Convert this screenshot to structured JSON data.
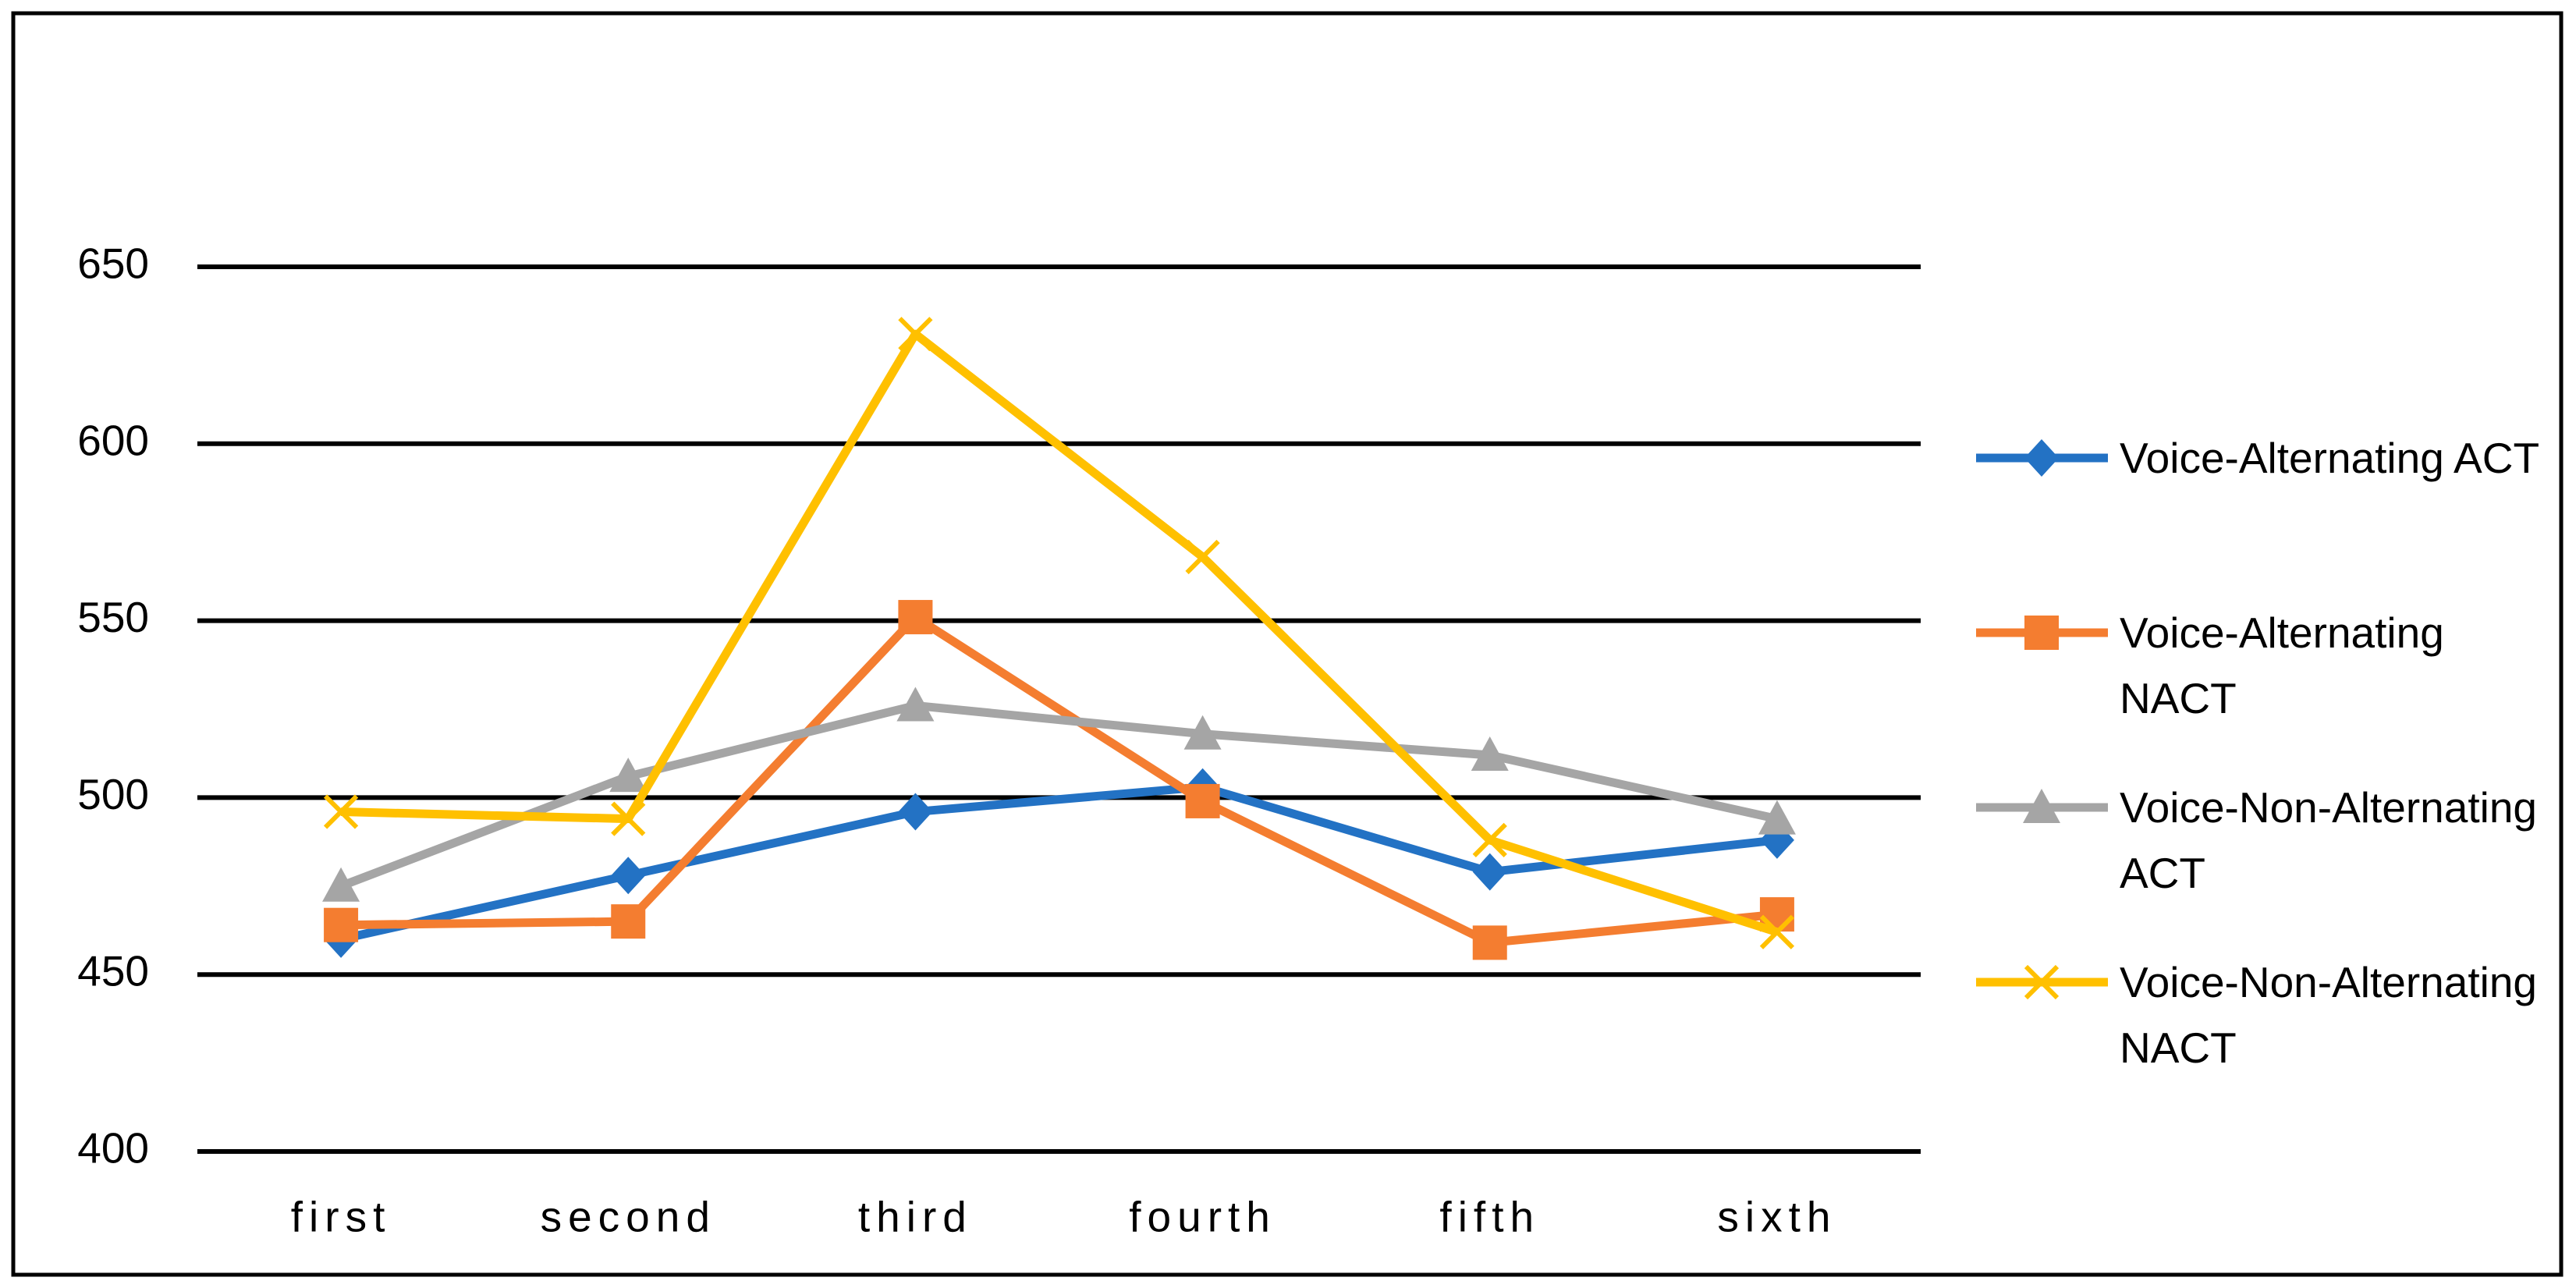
{
  "chart_data": {
    "type": "line",
    "categories": [
      "first",
      "second",
      "third",
      "fourth",
      "fifth",
      "sixth"
    ],
    "series": [
      {
        "name": "Voice-Alternating ACT",
        "color": "#2372c4",
        "marker": "diamond",
        "values": [
          460,
          478,
          496,
          503,
          479,
          488
        ]
      },
      {
        "name": "Voice-Alternating NACT",
        "color": "#f47d30",
        "marker": "square",
        "values": [
          464,
          465,
          551,
          499,
          459,
          467
        ]
      },
      {
        "name": "Voice-Non-Alternating ACT",
        "color": "#a5a5a5",
        "marker": "triangle",
        "values": [
          475,
          506,
          526,
          518,
          512,
          494
        ]
      },
      {
        "name": "Voice-Non-Alternating NACT",
        "color": "#ffc000",
        "marker": "x",
        "values": [
          496,
          494,
          631,
          568,
          488,
          462
        ]
      }
    ],
    "ylim": [
      400,
      650
    ],
    "yticks": [
      400,
      450,
      500,
      550,
      600,
      650
    ],
    "grid": true,
    "legend": "right"
  }
}
